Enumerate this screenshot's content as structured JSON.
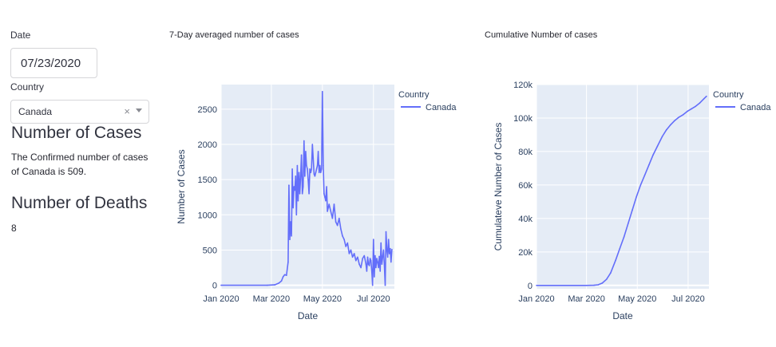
{
  "controls": {
    "date_label": "Date",
    "date_value": "07/23/2020",
    "country_label": "Country",
    "country_value": "Canada",
    "clear_glyph": "×"
  },
  "cases": {
    "heading": "Number of Cases",
    "text_line1": "The Confirmed number of cases",
    "text_line2": "of Canada is 509."
  },
  "deaths": {
    "heading": "Number of Deaths",
    "value": "8"
  },
  "chart_data": [
    {
      "type": "line",
      "title": "7-Day averaged number of cases",
      "xlabel": "Date",
      "ylabel": "Number of Cases",
      "legend_title": "Country",
      "legend_placement": "top-right",
      "grid": true,
      "color": "#636efa",
      "xlim": [
        "2020-01-01",
        "2020-07-26"
      ],
      "ylim": [
        -50,
        2850
      ],
      "x_ticks": [
        {
          "date": "2020-01-01",
          "label": "Jan 2020"
        },
        {
          "date": "2020-03-01",
          "label": "Mar 2020"
        },
        {
          "date": "2020-05-01",
          "label": "May 2020"
        },
        {
          "date": "2020-07-01",
          "label": "Jul 2020"
        }
      ],
      "y_ticks": [
        0,
        500,
        1000,
        1500,
        2000,
        2500
      ],
      "series": [
        {
          "name": "Canada",
          "x": [
            "2020-01-01",
            "2020-02-25",
            "2020-03-05",
            "2020-03-10",
            "2020-03-13",
            "2020-03-15",
            "2020-03-17",
            "2020-03-19",
            "2020-03-21",
            "2020-03-22",
            "2020-03-23",
            "2020-03-24",
            "2020-03-25",
            "2020-03-26",
            "2020-03-27",
            "2020-03-28",
            "2020-03-29",
            "2020-03-30",
            "2020-03-31",
            "2020-04-01",
            "2020-04-02",
            "2020-04-03",
            "2020-04-04",
            "2020-04-05",
            "2020-04-06",
            "2020-04-07",
            "2020-04-08",
            "2020-04-09",
            "2020-04-10",
            "2020-04-11",
            "2020-04-12",
            "2020-04-13",
            "2020-04-14",
            "2020-04-15",
            "2020-04-16",
            "2020-04-17",
            "2020-04-18",
            "2020-04-19",
            "2020-04-20",
            "2020-04-21",
            "2020-04-22",
            "2020-04-23",
            "2020-04-24",
            "2020-04-25",
            "2020-04-26",
            "2020-04-27",
            "2020-04-28",
            "2020-04-29",
            "2020-04-30",
            "2020-05-01",
            "2020-05-02",
            "2020-05-03",
            "2020-05-04",
            "2020-05-05",
            "2020-05-06",
            "2020-05-07",
            "2020-05-09",
            "2020-05-11",
            "2020-05-13",
            "2020-05-15",
            "2020-05-17",
            "2020-05-19",
            "2020-05-21",
            "2020-05-23",
            "2020-05-25",
            "2020-05-27",
            "2020-05-29",
            "2020-05-31",
            "2020-06-02",
            "2020-06-04",
            "2020-06-06",
            "2020-06-08",
            "2020-06-10",
            "2020-06-12",
            "2020-06-14",
            "2020-06-16",
            "2020-06-18",
            "2020-06-20",
            "2020-06-22",
            "2020-06-23",
            "2020-06-24",
            "2020-06-25",
            "2020-06-26",
            "2020-06-27",
            "2020-06-28",
            "2020-06-29",
            "2020-06-30",
            "2020-07-01",
            "2020-07-02",
            "2020-07-03",
            "2020-07-04",
            "2020-07-05",
            "2020-07-06",
            "2020-07-07",
            "2020-07-08",
            "2020-07-09",
            "2020-07-10",
            "2020-07-11",
            "2020-07-12",
            "2020-07-13",
            "2020-07-14",
            "2020-07-15",
            "2020-07-16",
            "2020-07-17",
            "2020-07-18",
            "2020-07-19",
            "2020-07-20",
            "2020-07-21",
            "2020-07-22",
            "2020-07-23"
          ],
          "values": [
            0,
            0,
            5,
            30,
            60,
            120,
            150,
            140,
            330,
            1420,
            650,
            900,
            700,
            1650,
            1100,
            1400,
            1350,
            1550,
            1000,
            1700,
            1200,
            1600,
            1300,
            1550,
            1850,
            1300,
            1400,
            2050,
            1550,
            1900,
            1700,
            1650,
            1500,
            1300,
            1650,
            1600,
            1650,
            2000,
            1800,
            1580,
            1550,
            1600,
            1650,
            1700,
            1900,
            1600,
            1700,
            1600,
            1650,
            2750,
            1700,
            1300,
            1250,
            1200,
            1400,
            1050,
            1150,
            1050,
            950,
            1150,
            900,
            850,
            950,
            800,
            700,
            650,
            550,
            600,
            450,
            500,
            400,
            450,
            350,
            400,
            300,
            250,
            380,
            420,
            300,
            200,
            400,
            300,
            280,
            380,
            350,
            200,
            0,
            650,
            120,
            420,
            250,
            380,
            330,
            250,
            410,
            200,
            600,
            300,
            400,
            500,
            300,
            0,
            760,
            500,
            400,
            650,
            450,
            520,
            330,
            509
          ]
        }
      ]
    },
    {
      "type": "line",
      "title": "Cumulative Number of cases",
      "xlabel": "Date",
      "ylabel": "Cumulateve Number of Cases",
      "legend_title": "Country",
      "legend_placement": "top-right",
      "grid": true,
      "color": "#636efa",
      "xlim": [
        "2020-01-01",
        "2020-07-26"
      ],
      "ylim": [
        -2000,
        120000
      ],
      "x_ticks": [
        {
          "date": "2020-01-01",
          "label": "Jan 2020"
        },
        {
          "date": "2020-03-01",
          "label": "Mar 2020"
        },
        {
          "date": "2020-05-01",
          "label": "May 2020"
        },
        {
          "date": "2020-07-01",
          "label": "Jul 2020"
        }
      ],
      "y_ticks": [
        {
          "value": 0,
          "label": "0"
        },
        {
          "value": 20000,
          "label": "20k"
        },
        {
          "value": 40000,
          "label": "40k"
        },
        {
          "value": 60000,
          "label": "60k"
        },
        {
          "value": 80000,
          "label": "80k"
        },
        {
          "value": 100000,
          "label": "100k"
        },
        {
          "value": 120000,
          "label": "120k"
        }
      ],
      "series": [
        {
          "name": "Canada",
          "x": [
            "2020-01-01",
            "2020-03-01",
            "2020-03-10",
            "2020-03-15",
            "2020-03-20",
            "2020-03-25",
            "2020-03-30",
            "2020-04-05",
            "2020-04-10",
            "2020-04-15",
            "2020-04-20",
            "2020-04-25",
            "2020-04-30",
            "2020-05-05",
            "2020-05-10",
            "2020-05-15",
            "2020-05-20",
            "2020-05-25",
            "2020-05-31",
            "2020-06-05",
            "2020-06-10",
            "2020-06-15",
            "2020-06-20",
            "2020-06-25",
            "2020-06-30",
            "2020-07-05",
            "2020-07-10",
            "2020-07-15",
            "2020-07-20",
            "2020-07-23"
          ],
          "values": [
            0,
            20,
            100,
            400,
            1400,
            3600,
            7500,
            15000,
            22000,
            29000,
            37000,
            45000,
            53000,
            60000,
            66000,
            72000,
            78000,
            83000,
            89000,
            93000,
            96000,
            98500,
            100500,
            102000,
            104000,
            105500,
            107000,
            109000,
            111500,
            113000
          ]
        }
      ]
    }
  ]
}
